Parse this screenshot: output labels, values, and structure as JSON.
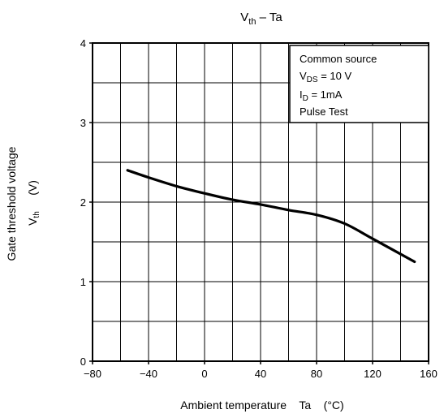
{
  "chart_data": {
    "type": "line",
    "title": {
      "main": "V",
      "sub": "th",
      "rest": " – Ta"
    },
    "xlabel": "Ambient temperature    Ta    (°C)",
    "ylabel": {
      "line1": "Gate threshold voltage",
      "line2_main": "V",
      "line2_sub": "th",
      "line2_unit": "(V)"
    },
    "xlim": [
      -80,
      160
    ],
    "ylim": [
      0,
      4
    ],
    "x_ticks": [
      "−80",
      "−40",
      "0",
      "40",
      "80",
      "120",
      "160"
    ],
    "y_ticks": [
      "0",
      "1",
      "2",
      "3",
      "4"
    ],
    "grid": true,
    "x_grid_step": 20,
    "y_grid_step": 0.5,
    "annotation": {
      "placement": "top-right",
      "lines": [
        {
          "main": "Common source",
          "sub": "",
          "rest": ""
        },
        {
          "main": "V",
          "sub": "DS",
          "rest": " = 10 V"
        },
        {
          "main": "I",
          "sub": "D",
          "rest": " = 1mA"
        },
        {
          "main": "Pulse Test",
          "sub": "",
          "rest": ""
        }
      ]
    },
    "series": [
      {
        "x": [
          -55,
          -40,
          -20,
          0,
          20,
          40,
          60,
          80,
          100,
          120,
          150
        ],
        "y": [
          2.4,
          2.31,
          2.2,
          2.11,
          2.03,
          1.97,
          1.9,
          1.84,
          1.73,
          1.54,
          1.25
        ]
      }
    ]
  }
}
